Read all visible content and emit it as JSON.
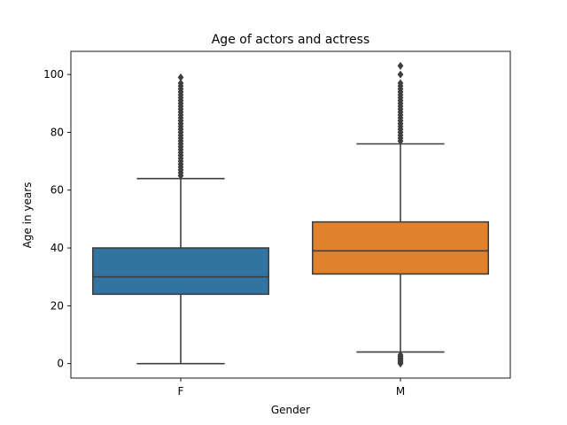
{
  "chart_data": {
    "type": "box",
    "title": "Age of actors and actress",
    "xlabel": "Gender",
    "ylabel": "Age in years",
    "categories": [
      "F",
      "M"
    ],
    "ylim": [
      -5,
      108
    ],
    "yticks": [
      0,
      20,
      40,
      60,
      80,
      100
    ],
    "grid": false,
    "colors": [
      "#3274a1",
      "#e1812c"
    ],
    "line_color": "#3f3f3f",
    "boxes": [
      {
        "category": "F",
        "whisker_low": 0,
        "q1": 24,
        "median": 30,
        "q3": 40,
        "whisker_high": 64,
        "outliers_high": [
          65,
          66,
          67,
          68,
          69,
          70,
          71,
          72,
          73,
          74,
          75,
          76,
          77,
          78,
          79,
          80,
          81,
          82,
          83,
          84,
          85,
          86,
          87,
          88,
          89,
          90,
          91,
          92,
          93,
          94,
          95,
          96,
          97,
          99
        ],
        "outliers_low": []
      },
      {
        "category": "M",
        "whisker_low": 4,
        "q1": 31,
        "median": 39,
        "q3": 49,
        "whisker_high": 76,
        "outliers_high": [
          77,
          78,
          79,
          80,
          81,
          82,
          83,
          84,
          85,
          86,
          87,
          88,
          89,
          90,
          91,
          92,
          93,
          94,
          95,
          96,
          97,
          100,
          103
        ],
        "outliers_low": [
          0,
          0.5,
          1,
          1.5,
          2,
          2.5,
          3
        ]
      }
    ]
  }
}
